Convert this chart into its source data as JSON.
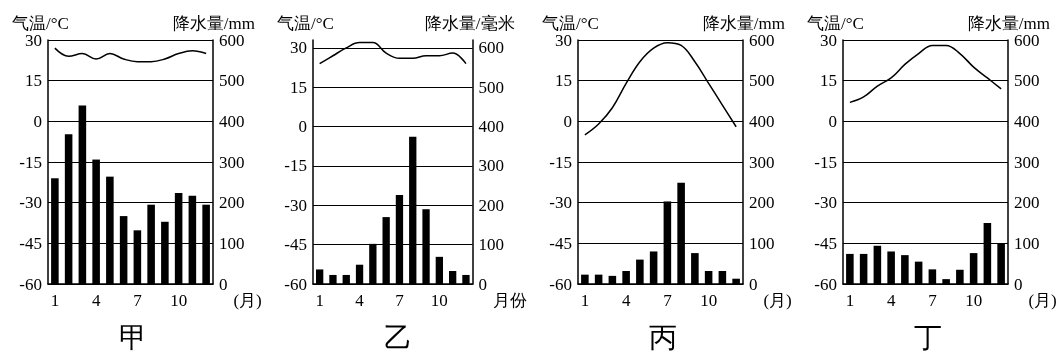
{
  "chart_data": [
    {
      "type": "bar",
      "title": "甲",
      "xlabel": "(月)",
      "ylabel": "气温/°C",
      "y2label": "降水量/mm",
      "categories": [
        "1",
        null,
        null,
        "4",
        null,
        null,
        "7",
        null,
        null,
        "10",
        null,
        null
      ],
      "ylim": [
        -60,
        30
      ],
      "yticks": [
        -60,
        -45,
        -30,
        -15,
        0,
        15,
        30
      ],
      "y2lim": [
        0,
        600
      ],
      "y2ticks": [
        0,
        100,
        200,
        300,
        400,
        500,
        600
      ],
      "grid": "y",
      "marker": "none",
      "series": [
        {
          "axis": "y2",
          "color": "#000000",
          "values": [
            260,
            368,
            439,
            306,
            264,
            167,
            132,
            195,
            153,
            224,
            217,
            195
          ]
        },
        {
          "type": "line",
          "color": "#000000",
          "values": [
            27,
            24,
            25,
            23,
            25,
            23,
            22,
            22,
            23,
            25,
            26,
            25
          ]
        }
      ]
    },
    {
      "type": "bar",
      "title": "乙",
      "xlabel": "月份",
      "ylabel": "气温/°C",
      "y2label": "降水量/毫米",
      "categories": [
        "1",
        null,
        null,
        "4",
        null,
        null,
        "7",
        null,
        null,
        "10",
        null,
        null
      ],
      "ylim": [
        -60,
        33
      ],
      "yticks": [
        -60,
        -45,
        -30,
        -15,
        0,
        15,
        30
      ],
      "y2lim": [
        0,
        620
      ],
      "y2ticks": [
        0,
        100,
        200,
        300,
        400,
        500,
        600
      ],
      "grid": "y",
      "marker": "none",
      "series": [
        {
          "axis": "y2",
          "color": "#000000",
          "values": [
            37,
            23,
            23,
            49,
            102,
            170,
            226,
            374,
            190,
            69,
            33,
            23
          ]
        },
        {
          "type": "line",
          "color": "#000000",
          "values": [
            24,
            27,
            30,
            32,
            32,
            28,
            26,
            26,
            27,
            27,
            28,
            24
          ]
        }
      ]
    },
    {
      "type": "bar",
      "title": "丙",
      "xlabel": "(月)",
      "ylabel": "气温/°C",
      "y2label": "降水量/mm",
      "categories": [
        "1",
        null,
        null,
        "4",
        null,
        null,
        "7",
        null,
        null,
        "10",
        null,
        null
      ],
      "ylim": [
        -60,
        30
      ],
      "yticks": [
        -60,
        -45,
        -30,
        -15,
        0,
        15,
        30
      ],
      "y2lim": [
        0,
        600
      ],
      "y2ticks": [
        0,
        100,
        200,
        300,
        400,
        500,
        600
      ],
      "grid": "y",
      "marker": "none",
      "series": [
        {
          "axis": "y2",
          "color": "#000000",
          "values": [
            23,
            23,
            20,
            32,
            60,
            80,
            203,
            249,
            76,
            32,
            32,
            13
          ]
        },
        {
          "type": "line",
          "color": "#000000",
          "values": [
            -5,
            -1,
            5,
            14,
            22,
            27,
            29,
            28,
            22,
            14,
            6,
            -2
          ]
        }
      ]
    },
    {
      "type": "bar",
      "title": "丁",
      "xlabel": "(月)",
      "ylabel": "气温/°C",
      "y2label": "降水量/mm",
      "categories": [
        "1",
        null,
        null,
        "4",
        null,
        null,
        "7",
        null,
        null,
        "10",
        null,
        null
      ],
      "ylim": [
        -60,
        30
      ],
      "yticks": [
        -60,
        -45,
        -30,
        -15,
        0,
        15,
        30
      ],
      "y2lim": [
        0,
        600
      ],
      "y2ticks": [
        0,
        100,
        200,
        300,
        400,
        500,
        600
      ],
      "grid": "y",
      "marker": "none",
      "series": [
        {
          "axis": "y2",
          "color": "#000000",
          "values": [
            74,
            74,
            94,
            80,
            71,
            55,
            36,
            12,
            35,
            76,
            150,
            99
          ]
        },
        {
          "type": "line",
          "color": "#000000",
          "values": [
            7,
            9,
            13,
            16,
            21,
            25,
            28,
            28,
            25,
            20,
            16,
            12
          ]
        }
      ]
    }
  ]
}
